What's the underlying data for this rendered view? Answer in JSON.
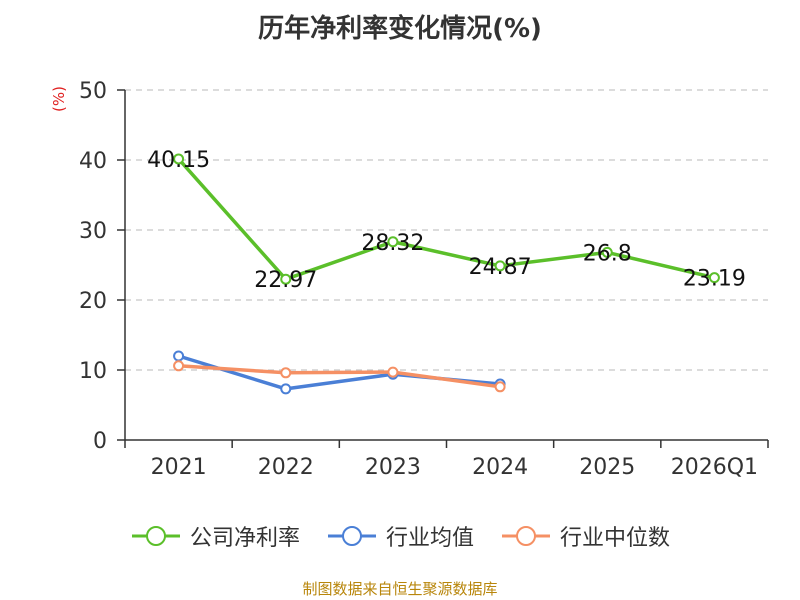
{
  "chart_data": {
    "type": "line",
    "title": "历年净利率变化情况(%)",
    "unit": "(%)",
    "categories": [
      "2021",
      "2022",
      "2023",
      "2024",
      "2025",
      "2026Q1"
    ],
    "ylim": [
      0,
      50
    ],
    "yticks": [
      0,
      10,
      20,
      30,
      40,
      50
    ],
    "grid": true,
    "legend_position": "bottom",
    "series": [
      {
        "name": "公司净利率",
        "color": "#5bbf2a",
        "values": [
          40.15,
          22.97,
          28.32,
          24.87,
          26.8,
          23.19
        ],
        "labels": [
          "40.15",
          "22.97",
          "28.32",
          "24.87",
          "26.8",
          "23.19"
        ]
      },
      {
        "name": "行业均值",
        "color": "#4a7fd6",
        "values": [
          12.0,
          7.3,
          9.4,
          8.0,
          null,
          null
        ]
      },
      {
        "name": "行业中位数",
        "color": "#f59064",
        "values": [
          10.6,
          9.6,
          9.7,
          7.6,
          null,
          null
        ]
      }
    ]
  },
  "source": "制图数据来自恒生聚源数据库"
}
